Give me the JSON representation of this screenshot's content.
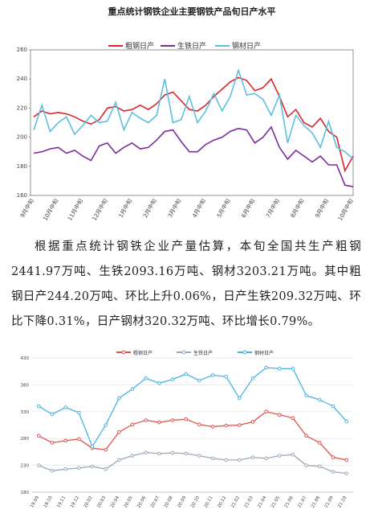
{
  "chart_data": [
    {
      "type": "line",
      "title": "重点统计钢铁企业主要钢铁产品旬日产水平",
      "categories": [
        "9月中旬",
        null,
        null,
        "10月中旬",
        null,
        null,
        "11月中旬",
        null,
        null,
        "12月中旬",
        null,
        null,
        "1月中旬",
        null,
        null,
        "2月中旬",
        null,
        null,
        "3月中旬",
        null,
        null,
        "4月中旬",
        null,
        null,
        "5月中旬",
        null,
        null,
        "6月中旬",
        null,
        null,
        "7月中旬",
        null,
        null,
        "8月中旬",
        null,
        null,
        "9月中旬",
        null,
        null,
        "10月中旬"
      ],
      "series": [
        {
          "name": "粗钢日产",
          "color": "#d9262b",
          "values": [
            214,
            218,
            216,
            217,
            216,
            214,
            211,
            209,
            212,
            220,
            221,
            218,
            219,
            222,
            219,
            223,
            229,
            231,
            225,
            219,
            218,
            222,
            228,
            233,
            238,
            241,
            239,
            232,
            234,
            240,
            228,
            214,
            219,
            210,
            207,
            213,
            204,
            200,
            177,
            187
          ]
        },
        {
          "name": "生铁日产",
          "color": "#7b2b9c",
          "values": [
            189,
            190,
            192,
            193,
            189,
            191,
            187,
            184,
            194,
            196,
            189,
            193,
            196,
            192,
            193,
            198,
            204,
            205,
            197,
            190,
            190,
            195,
            198,
            200,
            204,
            206,
            205,
            196,
            200,
            207,
            193,
            185,
            191,
            187,
            183,
            187,
            181,
            181,
            167,
            166
          ]
        },
        {
          "name": "钢材日产",
          "color": "#5bc0de",
          "values": [
            205,
            222,
            204,
            210,
            214,
            202,
            208,
            215,
            210,
            211,
            224,
            205,
            217,
            213,
            210,
            215,
            240,
            210,
            212,
            228,
            210,
            218,
            230,
            218,
            228,
            246,
            229,
            230,
            226,
            215,
            229,
            196,
            215,
            208,
            203,
            193,
            211,
            193,
            190,
            185
          ]
        }
      ],
      "ylim": [
        160,
        260
      ],
      "yticks": [
        160,
        180,
        200,
        220,
        240,
        260
      ],
      "grid": false,
      "markers": false
    },
    {
      "type": "line",
      "categories": [
        "19.09",
        "19.10",
        "19.11",
        "19.12",
        "20.02",
        "20.03",
        "20.04",
        "20.05",
        "20.06",
        "20.07",
        "20.08",
        "20.09",
        "20.10",
        "20.11",
        "20.12",
        "21.02",
        "21.03",
        "21.04",
        "21.05",
        "21.06",
        "21.07",
        "21.08",
        "21.09",
        "21.10"
      ],
      "series": [
        {
          "name": "粗钢日产",
          "color": "#e0534d",
          "values": [
            285,
            272,
            276,
            279,
            262,
            259,
            292,
            306,
            314,
            310,
            314,
            316,
            306,
            302,
            304,
            305,
            311,
            330,
            324,
            318,
            285,
            272,
            245,
            240
          ]
        },
        {
          "name": "生铁日产",
          "color": "#9aa9b8",
          "values": [
            230,
            220,
            223,
            225,
            228,
            223,
            240,
            248,
            254,
            252,
            253,
            252,
            248,
            243,
            240,
            240,
            245,
            243,
            248,
            250,
            230,
            228,
            218,
            215
          ]
        },
        {
          "name": "钢材日产",
          "color": "#49b3e6",
          "values": [
            340,
            325,
            338,
            328,
            265,
            305,
            355,
            372,
            392,
            383,
            390,
            400,
            388,
            398,
            395,
            355,
            392,
            412,
            410,
            410,
            360,
            352,
            340,
            312
          ]
        }
      ],
      "ylim": [
        180,
        430
      ],
      "yticks": [
        180,
        230,
        280,
        330,
        380,
        430
      ],
      "grid": true,
      "markers": true
    }
  ],
  "paragraph": "根据重点统计钢铁企业产量估算，本旬全国共生产粗钢2441.97万吨、生铁2093.16万吨、钢材3203.21万吨。其中粗钢日产244.20万吨、环比上升0.06%，日产生铁209.32万吨、环比下降0.31%，日产钢材320.32万吨、环比增长0.79%。"
}
